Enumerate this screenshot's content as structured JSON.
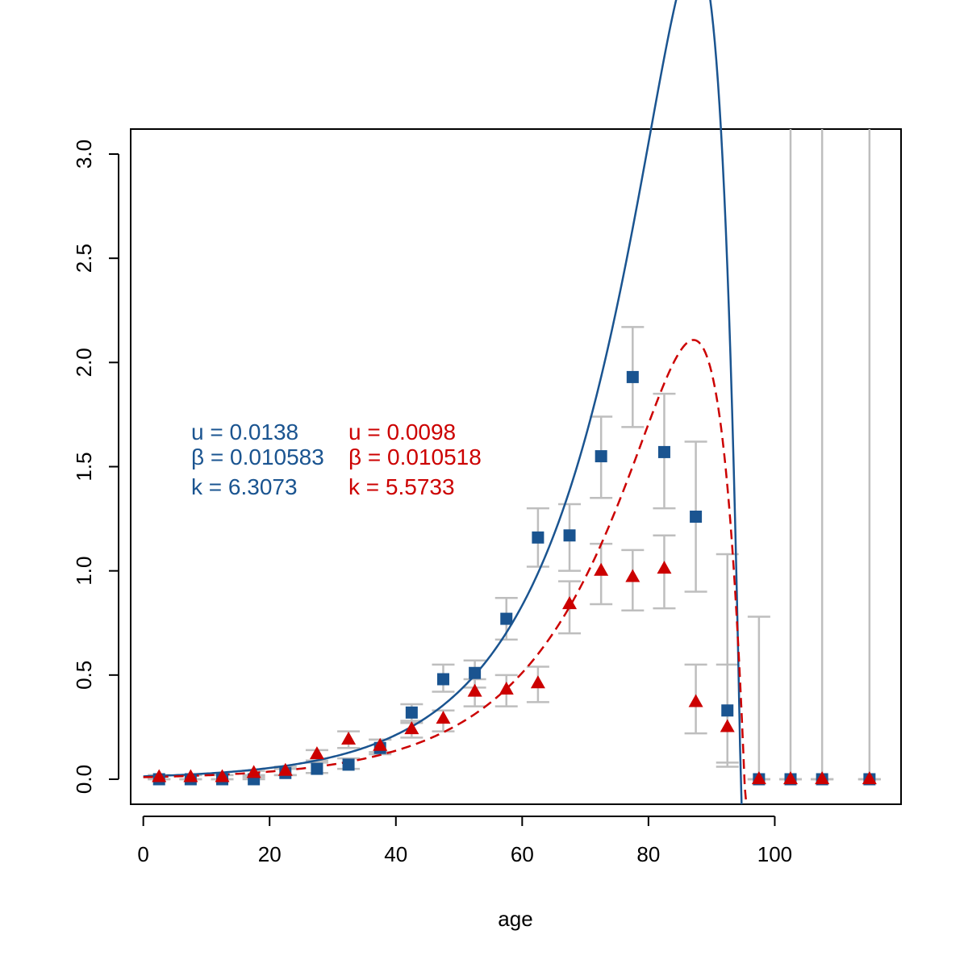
{
  "colors": {
    "series_blue": "#1a5490",
    "series_red": "#cc0000",
    "errorbar": "#bebebe",
    "axis": "#000000"
  },
  "chart_data": {
    "type": "scatter",
    "xlabel": "age",
    "ylabel": "",
    "title": "",
    "xlim": [
      -2,
      120
    ],
    "ylim": [
      -0.12,
      3.12
    ],
    "xticks": [
      0,
      20,
      40,
      60,
      80,
      100
    ],
    "yticks": [
      0.0,
      0.5,
      1.0,
      1.5,
      2.0,
      2.5,
      3.0
    ],
    "xtick_labels": [
      "0",
      "20",
      "40",
      "60",
      "80",
      "100"
    ],
    "ytick_labels": [
      "0.0",
      "0.5",
      "1.0",
      "1.5",
      "2.0",
      "2.5",
      "3.0"
    ],
    "grid": false,
    "series": [
      {
        "marker": "square",
        "color": "#1a5490",
        "x": [
          2.5,
          7.5,
          12.5,
          17.5,
          22.5,
          27.5,
          32.5,
          37.5,
          42.5,
          47.5,
          52.5,
          57.5,
          62.5,
          67.5,
          72.5,
          77.5,
          82.5,
          87.5,
          92.5,
          97.5,
          102.5,
          107.5,
          115
        ],
        "y": [
          0.0,
          0.0,
          0.0,
          0.0,
          0.03,
          0.05,
          0.07,
          0.15,
          0.32,
          0.48,
          0.51,
          0.77,
          1.16,
          1.17,
          1.55,
          1.93,
          1.57,
          1.26,
          0.33,
          0.0,
          0.0,
          0.0,
          0.0
        ],
        "err_low": [
          0.0,
          0.0,
          0.0,
          0.0,
          0.02,
          0.03,
          0.05,
          0.12,
          0.27,
          0.42,
          0.44,
          0.67,
          1.02,
          1.0,
          1.35,
          1.69,
          1.3,
          0.9,
          0.08,
          0.0,
          0.0,
          0.0,
          0.0
        ],
        "err_high": [
          0.02,
          0.02,
          0.02,
          0.02,
          0.05,
          0.08,
          0.1,
          0.19,
          0.36,
          0.55,
          0.57,
          0.87,
          1.3,
          1.32,
          1.74,
          2.17,
          1.85,
          1.62,
          1.08,
          0.78,
          3.12,
          3.12,
          3.12
        ],
        "fit": {
          "u": 0.0138,
          "beta": 0.010583,
          "k": 6.3073,
          "style": "solid"
        }
      },
      {
        "marker": "triangle",
        "color": "#cc0000",
        "x": [
          2.5,
          7.5,
          12.5,
          17.5,
          22.5,
          27.5,
          32.5,
          37.5,
          42.5,
          47.5,
          52.5,
          57.5,
          62.5,
          67.5,
          72.5,
          77.5,
          82.5,
          87.5,
          92.5,
          97.5,
          102.5,
          107.5,
          115
        ],
        "y": [
          0.01,
          0.01,
          0.01,
          0.03,
          0.04,
          0.12,
          0.19,
          0.16,
          0.24,
          0.29,
          0.42,
          0.43,
          0.46,
          0.84,
          1.0,
          0.97,
          1.01,
          0.37,
          0.25,
          0.0,
          0.0,
          0.0,
          0.0
        ],
        "err_low": [
          0.0,
          0.0,
          0.0,
          0.01,
          0.02,
          0.09,
          0.15,
          0.13,
          0.2,
          0.23,
          0.35,
          0.35,
          0.37,
          0.7,
          0.84,
          0.81,
          0.82,
          0.22,
          0.06,
          0.0,
          0.0,
          0.0,
          0.0
        ],
        "err_high": [
          0.02,
          0.02,
          0.02,
          0.04,
          0.06,
          0.14,
          0.23,
          0.19,
          0.28,
          0.33,
          0.48,
          0.5,
          0.54,
          0.95,
          1.13,
          1.1,
          1.17,
          0.55,
          0.55,
          0.0,
          0.0,
          0.0,
          0.0
        ],
        "fit": {
          "u": 0.0098,
          "beta": 0.010518,
          "k": 5.5733,
          "style": "dashed"
        }
      }
    ],
    "annotations": {
      "blue": [
        "u = 0.0138",
        "β = 0.010583",
        "k =  6.3073"
      ],
      "red": [
        "u = 0.0098",
        "β = 0.010518",
        "k =  5.5733"
      ]
    }
  }
}
